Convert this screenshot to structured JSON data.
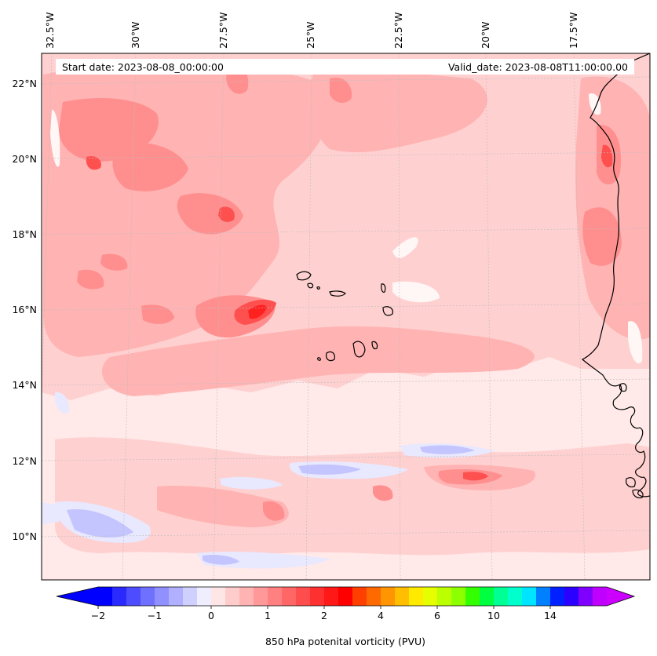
{
  "map": {
    "start_label": "Start date: 2023-08-08_00:00:00",
    "valid_label": "Valid_date: 2023-08-08T11:00:00.00",
    "longitude_labels": [
      "32.5°W",
      "30°W",
      "27.5°W",
      "25°W",
      "22.5°W",
      "20°W",
      "17.5°W"
    ],
    "latitude_labels": [
      "22°N",
      "20°N",
      "18°N",
      "16°N",
      "14°N",
      "12°N",
      "10°N"
    ],
    "variable": "850 hPa potential vorticity",
    "units": "PVU"
  },
  "colorbar": {
    "label": "850 hPa potenital vorticity (PVU)",
    "ticks": [
      "−2",
      "−1",
      "0",
      "1",
      "2",
      "4",
      "6",
      "10",
      "14"
    ],
    "colors": [
      "#0000ff",
      "#2a2aff",
      "#4d4dff",
      "#7070ff",
      "#9090ff",
      "#b0b0ff",
      "#d0d0ff",
      "#eeeeff",
      "#ffe6e6",
      "#ffcccc",
      "#ffb3b3",
      "#ff9999",
      "#ff8080",
      "#ff6666",
      "#ff4d4d",
      "#ff3030",
      "#ff1818",
      "#ff0000",
      "#ff3f00",
      "#ff6a00",
      "#ff9500",
      "#ffbf00",
      "#ffea00",
      "#e6ff00",
      "#bbff00",
      "#8cff00",
      "#33ff00",
      "#00ff40",
      "#00ff95",
      "#00ffcc",
      "#00e5ff",
      "#0080ff",
      "#0020ff",
      "#2a00ff",
      "#8000ff",
      "#c000ff"
    ],
    "under_color": "#0000ff",
    "over_color": "#cc00ff"
  },
  "palette": {
    "bg": "#ffe9e9",
    "light": "#ffd0d0",
    "medium": "#ffb3b3",
    "strong": "#ff8f8f",
    "peak": "#ff5050",
    "max": "#ff2020",
    "neg_light": "#e8e8ff",
    "neg_medium": "#c4c4ff",
    "neg_strong": "#9a9aff",
    "white": "#fff6f6",
    "coast": "#000000",
    "grid": "#bdbdbd"
  }
}
